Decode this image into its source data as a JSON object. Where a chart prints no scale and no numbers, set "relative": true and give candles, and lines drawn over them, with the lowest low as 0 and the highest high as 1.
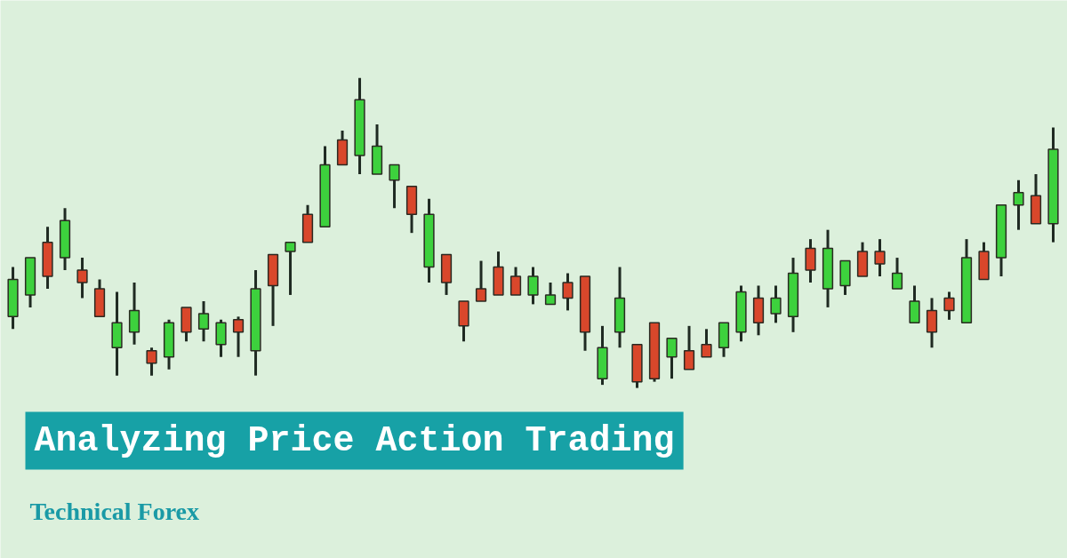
{
  "chart_data": {
    "type": "candlestick",
    "title": "Analyzing Price Action Trading",
    "subtitle": "Technical Forex",
    "relative": true,
    "categories": [
      null,
      null,
      null,
      null,
      null,
      null,
      null,
      null,
      null,
      null,
      null,
      null,
      null,
      null,
      null,
      null,
      null,
      null,
      null,
      null,
      null,
      null,
      null,
      null,
      null,
      null,
      null,
      null,
      null,
      null,
      null,
      null,
      null,
      null,
      null,
      null,
      null,
      null,
      null,
      null,
      null,
      null,
      null,
      null,
      null,
      null,
      null,
      null,
      null,
      null,
      null,
      null,
      null,
      null,
      null,
      null,
      null,
      null,
      null,
      null,
      null
    ],
    "ohlc": [
      [
        0.23,
        0.39,
        0.19,
        0.35
      ],
      [
        0.3,
        0.42,
        0.26,
        0.42
      ],
      [
        0.47,
        0.52,
        0.32,
        0.36
      ],
      [
        0.42,
        0.58,
        0.38,
        0.54
      ],
      [
        0.38,
        0.42,
        0.29,
        0.34
      ],
      [
        0.32,
        0.35,
        0.23,
        0.23
      ],
      [
        0.13,
        0.31,
        0.04,
        0.21
      ],
      [
        0.18,
        0.34,
        0.14,
        0.25
      ],
      [
        0.12,
        0.13,
        0.04,
        0.08
      ],
      [
        0.1,
        0.22,
        0.06,
        0.21
      ],
      [
        0.26,
        0.26,
        0.15,
        0.18
      ],
      [
        0.19,
        0.28,
        0.15,
        0.24
      ],
      [
        0.14,
        0.22,
        0.1,
        0.21
      ],
      [
        0.22,
        0.23,
        0.1,
        0.18
      ],
      [
        0.12,
        0.38,
        0.04,
        0.32
      ],
      [
        0.43,
        0.43,
        0.2,
        0.33
      ],
      [
        0.44,
        0.47,
        0.3,
        0.47
      ],
      [
        0.56,
        0.59,
        0.47,
        0.47
      ],
      [
        0.52,
        0.78,
        0.52,
        0.72
      ],
      [
        0.8,
        0.83,
        0.72,
        0.72
      ],
      [
        0.75,
        1.0,
        0.69,
        0.93
      ],
      [
        0.69,
        0.85,
        0.69,
        0.78
      ],
      [
        0.67,
        0.72,
        0.58,
        0.72
      ],
      [
        0.65,
        0.65,
        0.5,
        0.56
      ],
      [
        0.39,
        0.61,
        0.34,
        0.56
      ],
      [
        0.43,
        0.43,
        0.3,
        0.34
      ],
      [
        0.28,
        0.28,
        0.15,
        0.2
      ],
      [
        0.32,
        0.41,
        0.28,
        0.28
      ],
      [
        0.39,
        0.44,
        0.3,
        0.3
      ],
      [
        0.36,
        0.39,
        0.3,
        0.3
      ],
      [
        0.3,
        0.39,
        0.27,
        0.36
      ],
      [
        0.27,
        0.34,
        0.27,
        0.3
      ],
      [
        0.34,
        0.37,
        0.25,
        0.29
      ],
      [
        0.36,
        0.36,
        0.12,
        0.18
      ],
      [
        0.03,
        0.2,
        0.01,
        0.13
      ],
      [
        0.18,
        0.39,
        0.13,
        0.29
      ],
      [
        0.14,
        0.14,
        0,
        0.02
      ],
      [
        0.21,
        0.21,
        0.02,
        0.03
      ],
      [
        0.1,
        0.16,
        0.03,
        0.16
      ],
      [
        0.12,
        0.2,
        0.06,
        0.06
      ],
      [
        0.14,
        0.19,
        0.1,
        0.1
      ],
      [
        0.13,
        0.21,
        0.1,
        0.21
      ],
      [
        0.18,
        0.33,
        0.15,
        0.31
      ],
      [
        0.29,
        0.33,
        0.17,
        0.21
      ],
      [
        0.24,
        0.33,
        0.21,
        0.29
      ],
      [
        0.23,
        0.42,
        0.18,
        0.37
      ],
      [
        0.45,
        0.48,
        0.34,
        0.38
      ],
      [
        0.32,
        0.51,
        0.26,
        0.45
      ],
      [
        0.33,
        0.41,
        0.3,
        0.41
      ],
      [
        0.44,
        0.47,
        0.36,
        0.36
      ],
      [
        0.44,
        0.48,
        0.36,
        0.4
      ],
      [
        0.32,
        0.42,
        0.32,
        0.37
      ],
      [
        0.21,
        0.33,
        0.21,
        0.28
      ],
      [
        0.25,
        0.29,
        0.13,
        0.18
      ],
      [
        0.29,
        0.31,
        0.22,
        0.25
      ],
      [
        0.21,
        0.48,
        0.21,
        0.42
      ],
      [
        0.44,
        0.47,
        0.35,
        0.35
      ],
      [
        0.42,
        0.59,
        0.36,
        0.59
      ],
      [
        0.59,
        0.67,
        0.51,
        0.63
      ],
      [
        0.62,
        0.69,
        0.53,
        0.53
      ],
      [
        0.53,
        0.84,
        0.47,
        0.77
      ]
    ],
    "colors": [
      "#3dd13d",
      "#3dd13d",
      "#d9472b",
      "#3dd13d",
      "#d9472b",
      "#d9472b",
      "#3dd13d",
      "#3dd13d",
      "#d9472b",
      "#3dd13d",
      "#d9472b",
      "#3dd13d",
      "#3dd13d",
      "#d9472b",
      "#3dd13d",
      "#d9472b",
      "#3dd13d",
      "#d9472b",
      "#3dd13d",
      "#d9472b",
      "#3dd13d",
      "#3dd13d",
      "#3dd13d",
      "#d9472b",
      "#3dd13d",
      "#d9472b",
      "#d9472b",
      "#d9472b",
      "#d9472b",
      "#d9472b",
      "#3dd13d",
      "#3dd13d",
      "#d9472b",
      "#d9472b",
      "#3dd13d",
      "#3dd13d",
      "#d9472b",
      "#d9472b",
      "#3dd13d",
      "#d9472b",
      "#d9472b",
      "#3dd13d",
      "#3dd13d",
      "#d9472b",
      "#3dd13d",
      "#3dd13d",
      "#d9472b",
      "#3dd13d",
      "#3dd13d",
      "#d9472b",
      "#d9472b",
      "#3dd13d",
      "#3dd13d",
      "#d9472b",
      "#d9472b",
      "#3dd13d",
      "#d9472b",
      "#3dd13d",
      "#3dd13d",
      "#d9472b",
      "#3dd13d"
    ]
  }
}
